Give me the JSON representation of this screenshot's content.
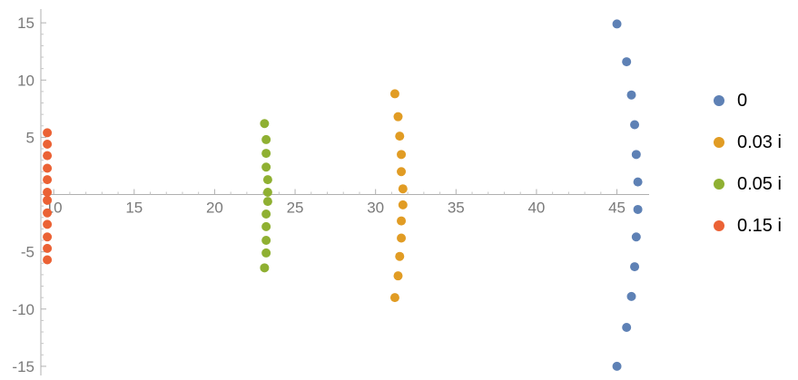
{
  "chart_data": {
    "type": "scatter",
    "title": "",
    "xlabel": "",
    "ylabel": "",
    "xlim": [
      9.2,
      47.0
    ],
    "ylim": [
      -15.8,
      16.2
    ],
    "x_ticks": [
      10,
      15,
      20,
      25,
      30,
      35,
      40,
      45
    ],
    "y_ticks": [
      -15,
      -10,
      -5,
      5,
      10,
      15
    ],
    "x_tick_labels": [
      "10",
      "15",
      "20",
      "25",
      "30",
      "35",
      "40",
      "45"
    ],
    "y_tick_labels": [
      "-15",
      "-10",
      "-5",
      "5",
      "10",
      "15"
    ],
    "grid": false,
    "legend_position": "right",
    "series": [
      {
        "name": "0",
        "color": "#5e81b5",
        "points": [
          [
            45.0,
            14.9
          ],
          [
            45.6,
            11.6
          ],
          [
            45.9,
            8.7
          ],
          [
            46.1,
            6.1
          ],
          [
            46.2,
            3.5
          ],
          [
            46.3,
            1.1
          ],
          [
            46.3,
            -1.3
          ],
          [
            46.2,
            -3.7
          ],
          [
            46.1,
            -6.3
          ],
          [
            45.9,
            -8.9
          ],
          [
            45.6,
            -11.6
          ],
          [
            45.0,
            -15.0
          ]
        ]
      },
      {
        "name": "0.03 i",
        "color": "#e19c24",
        "points": [
          [
            31.2,
            8.8
          ],
          [
            31.4,
            6.8
          ],
          [
            31.5,
            5.1
          ],
          [
            31.6,
            3.5
          ],
          [
            31.6,
            2.0
          ],
          [
            31.7,
            0.5
          ],
          [
            31.7,
            -0.9
          ],
          [
            31.6,
            -2.3
          ],
          [
            31.6,
            -3.8
          ],
          [
            31.5,
            -5.4
          ],
          [
            31.4,
            -7.1
          ],
          [
            31.2,
            -9.0
          ]
        ]
      },
      {
        "name": "0.05 i",
        "color": "#8fb032",
        "points": [
          [
            23.1,
            6.2
          ],
          [
            23.2,
            4.8
          ],
          [
            23.2,
            3.6
          ],
          [
            23.2,
            2.4
          ],
          [
            23.3,
            1.3
          ],
          [
            23.3,
            0.2
          ],
          [
            23.3,
            -0.6
          ],
          [
            23.2,
            -1.7
          ],
          [
            23.2,
            -2.8
          ],
          [
            23.2,
            -4.0
          ],
          [
            23.2,
            -5.1
          ],
          [
            23.1,
            -6.4
          ]
        ]
      },
      {
        "name": "0.15 i",
        "color": "#eb6235",
        "points": [
          [
            9.6,
            5.4
          ],
          [
            9.6,
            4.4
          ],
          [
            9.6,
            3.4
          ],
          [
            9.6,
            2.3
          ],
          [
            9.6,
            1.3
          ],
          [
            9.6,
            0.2
          ],
          [
            9.6,
            -0.5
          ],
          [
            9.6,
            -1.6
          ],
          [
            9.6,
            -2.6
          ],
          [
            9.6,
            -3.7
          ],
          [
            9.6,
            -4.7
          ],
          [
            9.6,
            -5.7
          ]
        ]
      }
    ]
  }
}
